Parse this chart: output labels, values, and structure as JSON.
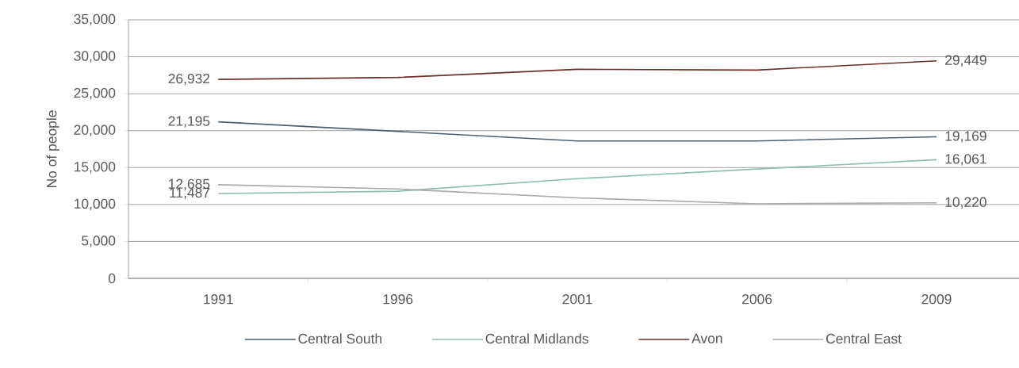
{
  "chart_data": {
    "type": "line",
    "ylabel": "No of people",
    "categories": [
      "1991",
      "1996",
      "2001",
      "2006",
      "2009"
    ],
    "series": [
      {
        "name": "Central South",
        "color": "#4d5f6e",
        "values": [
          21195,
          19900,
          18600,
          18600,
          19169
        ],
        "value_labels": [
          "21,195",
          null,
          null,
          null,
          "19,169"
        ]
      },
      {
        "name": "Central Midlands",
        "color": "#8fbcb1",
        "values": [
          11487,
          11800,
          13500,
          14800,
          16061
        ],
        "value_labels": [
          "11,487",
          null,
          null,
          null,
          "16,061"
        ]
      },
      {
        "name": "Avon",
        "color": "#6b2f2a",
        "values": [
          26932,
          27200,
          28300,
          28200,
          29449
        ],
        "value_labels": [
          "26,932",
          null,
          null,
          null,
          "29,449"
        ]
      },
      {
        "name": "Central East",
        "color": "#a9aba6",
        "values": [
          12685,
          12100,
          10900,
          10100,
          10220
        ],
        "value_labels": [
          "12,685",
          null,
          null,
          null,
          "10,220"
        ]
      }
    ],
    "ylim": [
      0,
      35000
    ],
    "yticks": [
      {
        "value": 0,
        "label": "0"
      },
      {
        "value": 5000,
        "label": "5,000"
      },
      {
        "value": 10000,
        "label": "10,000"
      },
      {
        "value": 15000,
        "label": "15,000"
      },
      {
        "value": 20000,
        "label": "20,000"
      },
      {
        "value": 25000,
        "label": "25,000"
      },
      {
        "value": 30000,
        "label": "30,000"
      },
      {
        "value": 35000,
        "label": "35,000"
      }
    ],
    "grid": "y",
    "legend": "bottom",
    "marker": "none",
    "line_style": "solid"
  }
}
